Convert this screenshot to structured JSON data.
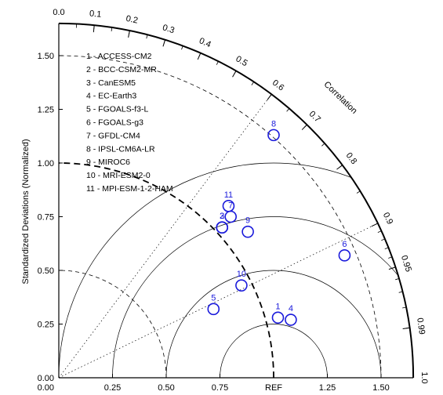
{
  "chart_data": {
    "type": "taylor",
    "ylabel": "Standardized Deviations (Normalized)",
    "angular_label": "Correlation",
    "reference_label": "REF",
    "sd_ticks_y": [
      "0.00",
      "0.25",
      "0.50",
      "0.75",
      "1.00",
      "1.25",
      "1.50"
    ],
    "sd_ticks_x": [
      "0.25",
      "0.50",
      "0.75",
      "REF",
      "1.25",
      "1.50"
    ],
    "correlation_ticks": [
      "0.0",
      "0.1",
      "0.2",
      "0.3",
      "0.4",
      "0.5",
      "0.6",
      "0.7",
      "0.8",
      "0.9",
      "0.95",
      "0.99",
      "1.0"
    ],
    "sd_range": [
      0,
      1.65
    ],
    "reference_sd": 1.0,
    "legend": [
      "1 - ACCESS-CM2",
      "2 - BCC-CSM2-MR",
      "3 - CanESM5",
      "4 - EC-Earth3",
      "5 - FGOALS-f3-L",
      "6 - FGOALS-g3",
      "7 - GFDL-CM4",
      "8 - IPSL-CM6A-LR",
      "9 - MIROC6",
      "10 - MRI-ESM2-0",
      "11 - MPI-ESM-1-2-HAM"
    ],
    "points": [
      {
        "label": "1",
        "x": 1.02,
        "y": 0.28
      },
      {
        "label": "2",
        "x": 0.76,
        "y": 0.7
      },
      {
        "label": "3",
        "x": 0.76,
        "y": 0.7
      },
      {
        "label": "4",
        "x": 1.08,
        "y": 0.27
      },
      {
        "label": "5",
        "x": 0.72,
        "y": 0.32
      },
      {
        "label": "6",
        "x": 1.33,
        "y": 0.57
      },
      {
        "label": "7",
        "x": 0.8,
        "y": 0.75
      },
      {
        "label": "8",
        "x": 1.0,
        "y": 1.13
      },
      {
        "label": "9",
        "x": 0.88,
        "y": 0.68
      },
      {
        "label": "10",
        "x": 0.85,
        "y": 0.43
      },
      {
        "label": "11",
        "x": 0.79,
        "y": 0.8
      }
    ],
    "marker_color": "#1a1adb"
  }
}
